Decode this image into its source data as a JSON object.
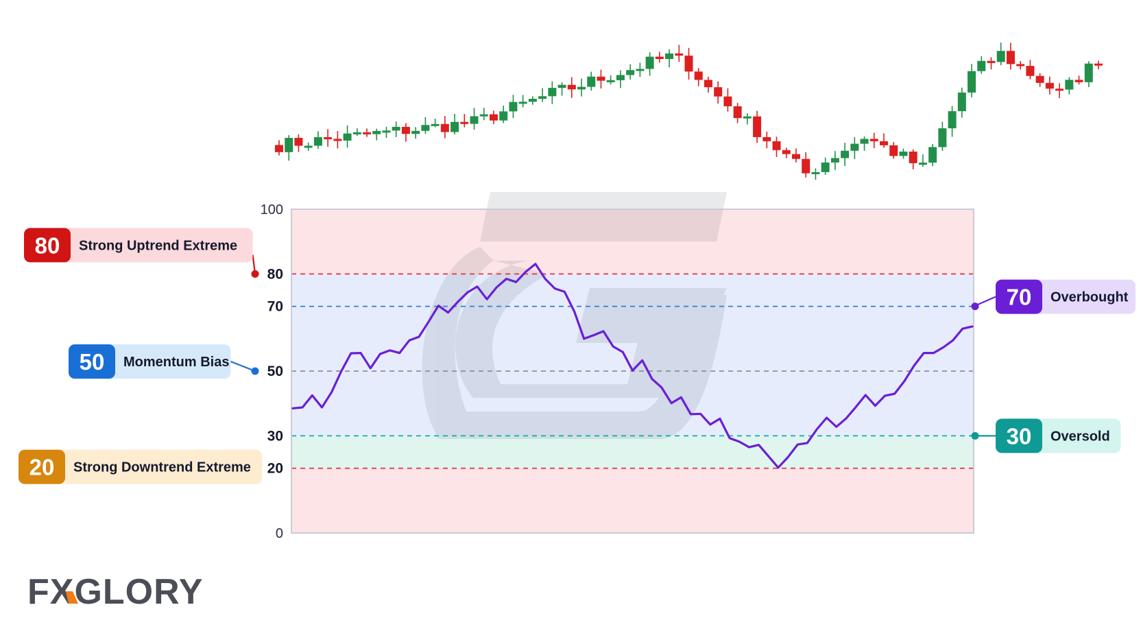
{
  "brand": {
    "logo_text": "FXGLORY"
  },
  "colors": {
    "up_candle": "#22904a",
    "down_candle": "#dd1f1f",
    "rsi_line": "#6a1fd6",
    "zone_extreme": "#fde4e6",
    "zone_mid": "#e6ecfb",
    "zone_oversold": "#dff5ee"
  },
  "chart_data": [
    {
      "type": "candlestick",
      "trend": [
        [
          0,
          100
        ],
        [
          20,
          108
        ],
        [
          28,
          118
        ],
        [
          40,
          131
        ],
        [
          42,
          128
        ],
        [
          44,
          120
        ],
        [
          54,
          90
        ],
        [
          60,
          103
        ],
        [
          66,
          92
        ],
        [
          71,
          125
        ],
        [
          74,
          132
        ],
        [
          80,
          118
        ],
        [
          84,
          130
        ]
      ],
      "seed": 7
    },
    {
      "type": "line",
      "ylim": [
        0,
        100
      ],
      "yticks": [
        0,
        20,
        30,
        50,
        70,
        80,
        100
      ],
      "bold_ticks": [
        20,
        30,
        50,
        70,
        80
      ],
      "zones": [
        {
          "from": 80,
          "to": 100,
          "color": "#fde4e6"
        },
        {
          "from": 30,
          "to": 80,
          "color": "#e6ecfb"
        },
        {
          "from": 20,
          "to": 30,
          "color": "#dff5ee"
        },
        {
          "from": 0,
          "to": 20,
          "color": "#fde4e6"
        }
      ],
      "reference_lines": [
        {
          "value": 80,
          "color": "#e0324a"
        },
        {
          "value": 70,
          "color": "#2f7fd8"
        },
        {
          "value": 50,
          "color": "#8a8f9c"
        },
        {
          "value": 30,
          "color": "#12a7b3"
        },
        {
          "value": 20,
          "color": "#e0324a"
        }
      ],
      "values": [
        38.5,
        38.8,
        42.5,
        38.8,
        43.5,
        50,
        55.5,
        55.6,
        50.9,
        55.3,
        56.4,
        55.6,
        59.5,
        60.6,
        65.3,
        70.2,
        68.1,
        71.4,
        74.3,
        76.1,
        72.2,
        75.9,
        78.5,
        77.5,
        80.7,
        83.1,
        78.5,
        75.5,
        74.5,
        68.4,
        60,
        61.1,
        62.3,
        57.6,
        55.9,
        50.2,
        53.3,
        47.6,
        44.9,
        40.1,
        41.9,
        36.7,
        36.8,
        33.5,
        35.3,
        29.3,
        28.2,
        26.5,
        27.2,
        23.7,
        20.2,
        23.4,
        27.3,
        27.8,
        32.1,
        35.6,
        32.8,
        35.4,
        38.9,
        42.6,
        39.3,
        42.4,
        43,
        46.9,
        51.7,
        55.6,
        55.6,
        57.3,
        59.5,
        63.1,
        63.8
      ]
    }
  ],
  "callouts": [
    {
      "value": "80",
      "label": "Strong Uptrend Extreme",
      "badge_color": "#d11414",
      "bg_color": "#fcd9dc",
      "dot_color": "#d11414",
      "level": 80,
      "side": "left"
    },
    {
      "value": "50",
      "label": "Momentum Bias",
      "badge_color": "#1a6fd6",
      "bg_color": "#d6e9fb",
      "dot_color": "#1a6fd6",
      "level": 50,
      "side": "left"
    },
    {
      "value": "20",
      "label": "Strong Downtrend Extreme",
      "badge_color": "#d7860e",
      "bg_color": "#fdecd0",
      "dot_color": "#ef7c14",
      "level": 20,
      "side": "left"
    },
    {
      "value": "70",
      "label": "Overbought",
      "badge_color": "#6a1fd6",
      "bg_color": "#e6dafb",
      "dot_color": "#6a1fd6",
      "level": 70,
      "side": "right"
    },
    {
      "value": "30",
      "label": "Oversold",
      "badge_color": "#0f9a94",
      "bg_color": "#d4f4ee",
      "dot_color": "#0f9a94",
      "level": 30,
      "side": "right"
    }
  ]
}
